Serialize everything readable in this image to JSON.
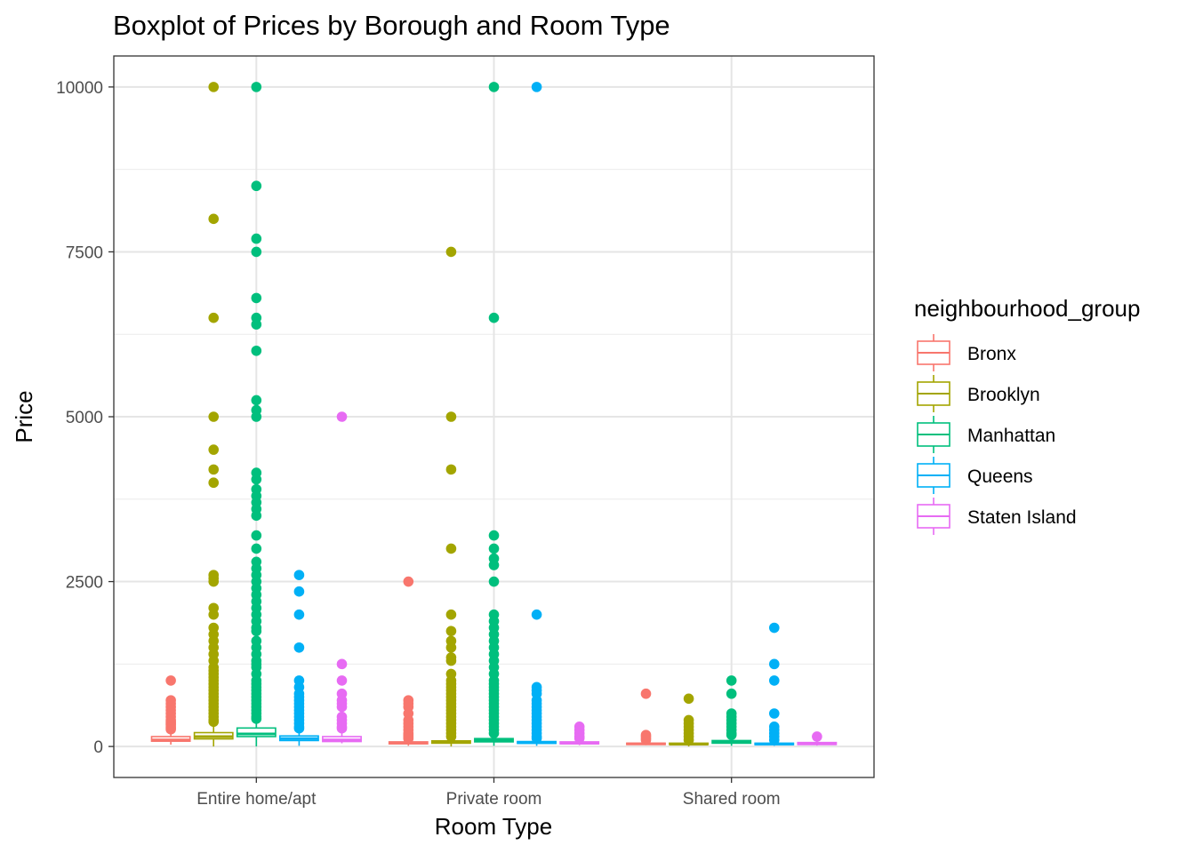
{
  "chart_data": {
    "type": "boxplot",
    "title": "Boxplot of Prices by Borough and Room Type",
    "xlabel": "Room Type",
    "ylabel": "Price",
    "ylim": [
      -470,
      10470
    ],
    "y_ticks": [
      0,
      2500,
      5000,
      7500,
      10000
    ],
    "grid": true,
    "legend": {
      "title": "neighbourhood_group",
      "position": "right"
    },
    "categories": [
      "Entire home/apt",
      "Private room",
      "Shared room"
    ],
    "series": [
      {
        "name": "Bronx",
        "color": "#F8766D",
        "boxes": [
          {
            "category": "Entire home/apt",
            "q1": 80,
            "median": 100,
            "q3": 150,
            "whisker_low": 28,
            "whisker_high": 250,
            "outliers": [
              1000,
              700,
              650,
              600,
              550,
              500,
              450,
              400,
              375,
              350,
              330,
              300,
              280,
              260
            ]
          },
          {
            "category": "Private room",
            "q1": 40,
            "median": 55,
            "q3": 70,
            "whisker_low": 10,
            "whisker_high": 115,
            "outliers": [
              2500,
              700,
              650,
              600,
              500,
              400,
              350,
              300,
              250,
              200,
              180,
              160,
              140,
              120
            ]
          },
          {
            "category": "Shared room",
            "q1": 30,
            "median": 40,
            "q3": 50,
            "whisker_low": 20,
            "whisker_high": 80,
            "outliers": [
              800,
              175,
              150,
              125,
              100
            ]
          }
        ]
      },
      {
        "name": "Brooklyn",
        "color": "#A3A500",
        "boxes": [
          {
            "category": "Entire home/apt",
            "q1": 115,
            "median": 150,
            "q3": 210,
            "whisker_low": 0,
            "whisker_high": 350,
            "outliers": [
              10000,
              8000,
              6500,
              5000,
              4500,
              4200,
              4000,
              2600,
              2550,
              2500,
              2100,
              2000,
              1800,
              1700,
              1600,
              1500,
              1400,
              1300,
              1200,
              1150,
              1100,
              1050,
              1000,
              950,
              900,
              850,
              800,
              750,
              700,
              650,
              600,
              550,
              500,
              450,
              400,
              375
            ]
          },
          {
            "category": "Private room",
            "q1": 50,
            "median": 65,
            "q3": 85,
            "whisker_low": 0,
            "whisker_high": 140,
            "outliers": [
              7500,
              5000,
              4200,
              3000,
              2000,
              1750,
              1600,
              1500,
              1350,
              1300,
              1100,
              1000,
              950,
              900,
              850,
              800,
              750,
              700,
              650,
              600,
              550,
              500,
              450,
              400,
              350,
              300,
              250,
              200,
              150
            ]
          },
          {
            "category": "Shared room",
            "q1": 30,
            "median": 36,
            "q3": 50,
            "whisker_low": 0,
            "whisker_high": 80,
            "outliers": [
              725,
              400,
              350,
              300,
              250,
              200,
              150,
              100
            ]
          }
        ]
      },
      {
        "name": "Manhattan",
        "color": "#00BF7D",
        "boxes": [
          {
            "category": "Entire home/apt",
            "q1": 150,
            "median": 190,
            "q3": 280,
            "whisker_low": 0,
            "whisker_high": 400,
            "outliers": [
              10000,
              8500,
              7700,
              7500,
              6800,
              6500,
              6400,
              6000,
              5250,
              5100,
              5000,
              4150,
              4050,
              3900,
              3800,
              3700,
              3600,
              3500,
              3200,
              3000,
              2800,
              2700,
              2600,
              2500,
              2400,
              2300,
              2200,
              2100,
              2000,
              1900,
              1800,
              1750,
              1600,
              1500,
              1400,
              1300,
              1250,
              1200,
              1100,
              1000,
              950,
              900,
              850,
              800,
              750,
              700,
              650,
              600,
              550,
              500,
              450,
              420
            ]
          },
          {
            "category": "Private room",
            "q1": 70,
            "median": 90,
            "q3": 120,
            "whisker_low": 10,
            "whisker_high": 195,
            "outliers": [
              10000,
              6500,
              3200,
              3000,
              2850,
              2750,
              2500,
              2000,
              1900,
              1800,
              1700,
              1600,
              1500,
              1400,
              1300,
              1200,
              1100,
              1000,
              950,
              900,
              850,
              800,
              750,
              700,
              650,
              600,
              550,
              500,
              450,
              400,
              350,
              300,
              250,
              200
            ]
          },
          {
            "category": "Shared room",
            "q1": 50,
            "median": 69,
            "q3": 90,
            "whisker_low": 10,
            "whisker_high": 150,
            "outliers": [
              1000,
              800,
              500,
              450,
              400,
              350,
              300,
              250,
              200,
              175
            ]
          }
        ]
      },
      {
        "name": "Queens",
        "color": "#00B0F6",
        "boxes": [
          {
            "category": "Entire home/apt",
            "q1": 90,
            "median": 120,
            "q3": 160,
            "whisker_low": 10,
            "whisker_high": 250,
            "outliers": [
              2600,
              2350,
              2000,
              1500,
              1000,
              900,
              800,
              750,
              700,
              650,
              600,
              550,
              500,
              450,
              400,
              350,
              300,
              275
            ]
          },
          {
            "category": "Private room",
            "q1": 47,
            "median": 60,
            "q3": 75,
            "whisker_low": 10,
            "whisker_high": 115,
            "outliers": [
              10000,
              2000,
              900,
              850,
              800,
              700,
              650,
              600,
              550,
              500,
              450,
              400,
              350,
              300,
              250,
              200,
              150,
              125
            ]
          },
          {
            "category": "Shared room",
            "q1": 28,
            "median": 37,
            "q3": 50,
            "whisker_low": 10,
            "whisker_high": 80,
            "outliers": [
              1800,
              1250,
              1000,
              500,
              300,
              250,
              200,
              150,
              100
            ]
          }
        ]
      },
      {
        "name": "Staten Island",
        "color": "#E76BF3",
        "boxes": [
          {
            "category": "Entire home/apt",
            "q1": 75,
            "median": 100,
            "q3": 150,
            "whisker_low": 48,
            "whisker_high": 250,
            "outliers": [
              5000,
              1250,
              1000,
              800,
              700,
              650,
              600,
              450,
              400,
              350,
              300,
              275
            ]
          },
          {
            "category": "Private room",
            "q1": 40,
            "median": 50,
            "q3": 70,
            "whisker_low": 20,
            "whisker_high": 110,
            "outliers": [
              300,
              250,
              200,
              150,
              125
            ]
          },
          {
            "category": "Shared room",
            "q1": 30,
            "median": 40,
            "q3": 60,
            "whisker_low": 13,
            "whisker_high": 90,
            "outliers": [
              150
            ]
          }
        ]
      }
    ]
  }
}
